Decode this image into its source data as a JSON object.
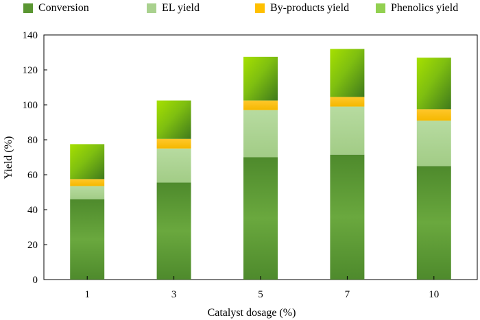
{
  "chart_data": {
    "type": "bar",
    "stacked": true,
    "categories": [
      "1",
      "3",
      "5",
      "7",
      "10"
    ],
    "series": [
      {
        "name": "Conversion",
        "values": [
          46,
          55.5,
          70,
          71.5,
          65
        ],
        "color": "#5a9632"
      },
      {
        "name": "EL yield",
        "values": [
          7.5,
          19.5,
          27,
          27.5,
          26
        ],
        "color": "#a9d18e"
      },
      {
        "name": "By-products yield",
        "values": [
          4,
          5.5,
          5.5,
          5.5,
          6.5
        ],
        "color": "#ffc000"
      },
      {
        "name": "Phenolics yield",
        "values": [
          20,
          22,
          25,
          27.5,
          29.5
        ],
        "color": "#92d050"
      }
    ],
    "xlabel": "Catalyst dosage (%)",
    "ylabel": "Yield (%)",
    "ylim": [
      0,
      140
    ],
    "yticks": [
      0,
      20,
      40,
      60,
      80,
      100,
      120,
      140
    ],
    "legend_position": "top",
    "grid": false
  }
}
